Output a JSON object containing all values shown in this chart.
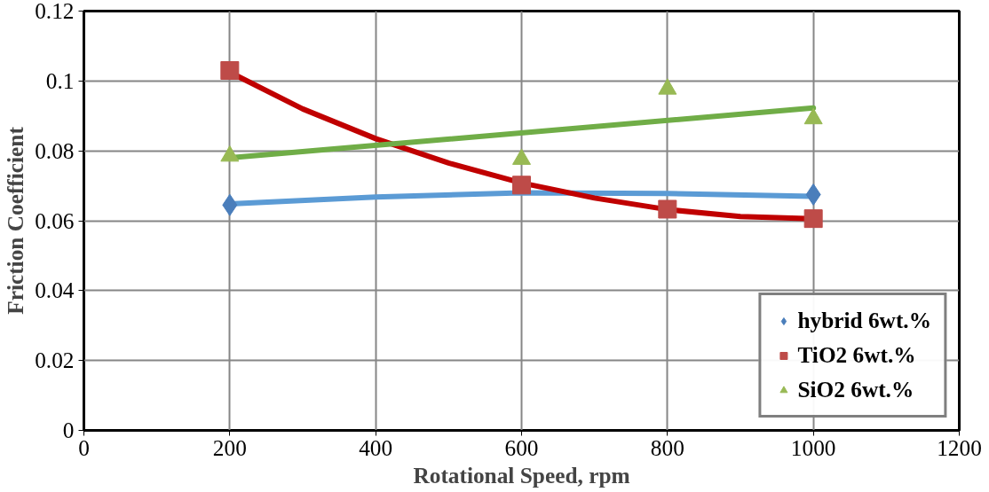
{
  "chart_data": {
    "type": "scatter",
    "xlabel": "Rotational Speed, rpm",
    "ylabel": "Friction Coefficient",
    "x": [
      200,
      600,
      800,
      1000
    ],
    "series": [
      {
        "name": "hybrid 6wt.%",
        "color": "#4a7ebb",
        "marker": "diamond",
        "values": [
          0.0645,
          null,
          null,
          0.0675
        ]
      },
      {
        "name": "TiO2 6wt.%",
        "color": "#be4b48",
        "marker": "square",
        "values": [
          0.103,
          0.0702,
          0.0633,
          0.0606
        ]
      },
      {
        "name": "SiO2 6wt.%",
        "color": "#98b954",
        "marker": "triangle",
        "values": [
          0.0785,
          0.0776,
          0.0977,
          0.0892
        ]
      },
      {
        "type": "line",
        "color": "#5b9bd5",
        "marker": "none",
        "x": [
          200,
          400,
          600,
          800,
          1000
        ],
        "values": [
          0.0648,
          0.0668,
          0.068,
          0.0678,
          0.067
        ]
      },
      {
        "type": "line",
        "color": "#c00000",
        "marker": "none",
        "x": [
          200,
          300,
          400,
          500,
          600,
          700,
          800,
          900,
          1000
        ],
        "values": [
          0.1025,
          0.092,
          0.0835,
          0.0765,
          0.0708,
          0.0665,
          0.0632,
          0.0612,
          0.0606
        ]
      },
      {
        "type": "line",
        "color": "#70ad47",
        "marker": "none",
        "x": [
          200,
          1000
        ],
        "values": [
          0.078,
          0.0923
        ]
      }
    ],
    "xlim": [
      0,
      1200
    ],
    "xticks": [
      0,
      200,
      400,
      600,
      800,
      1000,
      1200
    ],
    "ylim": [
      0,
      0.12
    ],
    "yticks": [
      0,
      0.02,
      0.04,
      0.06,
      0.08,
      {
        "value": 0.1,
        "label": "0.1"
      },
      0.12
    ],
    "grid": true,
    "legend": "bottom right"
  }
}
